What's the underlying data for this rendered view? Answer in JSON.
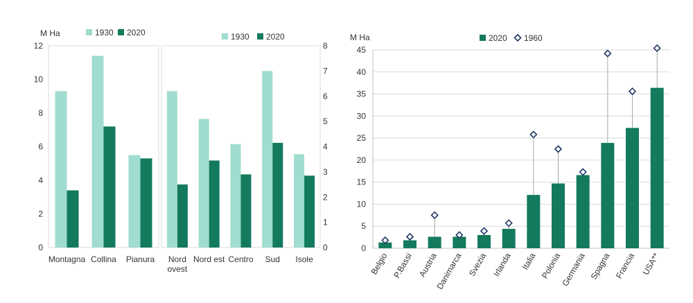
{
  "colors": {
    "c1930": "#a0dccf",
    "c2020": "#137a5e",
    "marker": "#1f3864",
    "stem": "#a6a6a6",
    "grid": "#d9d9d9",
    "frame": "#d9d9d9"
  },
  "chart_data": [
    {
      "type": "bar",
      "ylabel": "M Ha",
      "ylim": [
        0,
        12
      ],
      "yticks": [
        "0",
        "2",
        "4",
        "6",
        "8",
        "10",
        "12"
      ],
      "categories": [
        "Montagna",
        "Collina",
        "Pianura"
      ],
      "series": [
        {
          "name": "1930",
          "values": [
            9.3,
            11.4,
            5.5
          ]
        },
        {
          "name": "2020",
          "values": [
            3.4,
            7.2,
            5.3
          ]
        }
      ],
      "grid": false,
      "legend": "top"
    },
    {
      "type": "bar",
      "ylabel": "",
      "ylim": [
        0,
        8
      ],
      "yticks": [
        "0",
        "1",
        "2",
        "3",
        "4",
        "5",
        "6",
        "7",
        "8"
      ],
      "y_axis_side": "right",
      "categories": [
        [
          "Nord",
          "ovest"
        ],
        [
          "Nord est"
        ],
        [
          "Centro"
        ],
        [
          "Sud"
        ],
        [
          "Isole"
        ]
      ],
      "series": [
        {
          "name": "1930",
          "values": [
            6.2,
            5.1,
            4.1,
            7.0,
            3.7
          ]
        },
        {
          "name": "2020",
          "values": [
            2.5,
            3.45,
            2.9,
            4.15,
            2.85
          ]
        }
      ],
      "grid": false,
      "legend": "top"
    },
    {
      "type": "bar",
      "ylabel": "M Ha",
      "ylim": [
        0,
        45
      ],
      "yticks": [
        "0",
        "5",
        "10",
        "15",
        "20",
        "25",
        "30",
        "35",
        "40",
        "45"
      ],
      "categories": [
        "Belgio",
        "P.Bassi",
        "Austria",
        "Danimarca",
        "Svezia",
        "Irlanda",
        "Italia",
        "Polonia",
        "Germania",
        "Spagna",
        "Francia",
        "USA**"
      ],
      "series": [
        {
          "name": "2020",
          "values": [
            1.3,
            1.8,
            2.6,
            2.6,
            3.0,
            4.4,
            12.1,
            14.7,
            16.6,
            23.9,
            27.3,
            36.4
          ]
        },
        {
          "name": "1960",
          "marker": "diamond",
          "values": [
            1.8,
            2.6,
            7.5,
            3.0,
            3.9,
            5.7,
            25.8,
            22.5,
            17.3,
            44.2,
            35.6,
            45.4
          ]
        }
      ],
      "grid": true,
      "legend": "top"
    }
  ]
}
